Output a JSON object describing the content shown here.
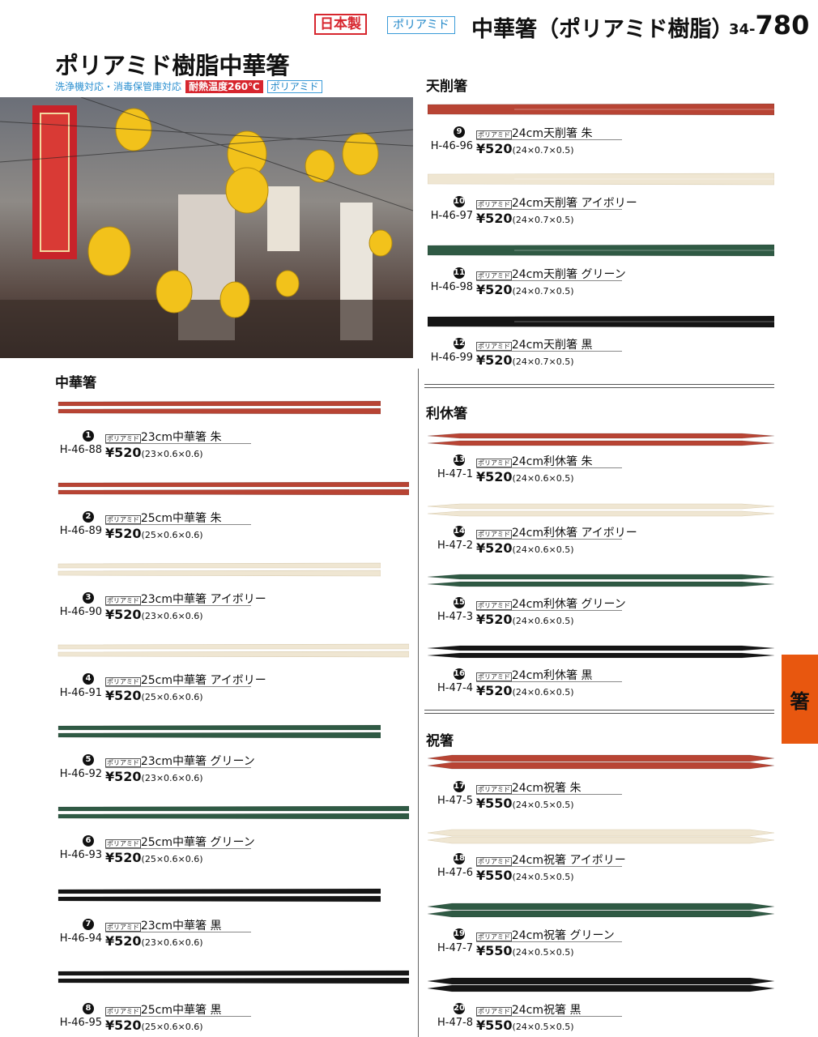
{
  "header": {
    "made_in_japan": "日本製",
    "material_badge": "ポリアミド",
    "title": "中華箸（ポリアミド樹脂）",
    "page_prefix": "34-",
    "page_number": "780"
  },
  "hero": {
    "title": "ポリアミド樹脂中華箸",
    "features": "洗浄機対応・消毒保管庫対応",
    "heat_badge": "耐熱温度260℃",
    "material_badge": "ポリアミド"
  },
  "side_tab": "箸",
  "colors": {
    "red": "#b84434",
    "ivory": "#efe6d2",
    "green": "#2f5a44",
    "black": "#151515",
    "accent": "#e8570f"
  },
  "sections": [
    {
      "title": "中華箸",
      "style": "chuka",
      "items": [
        {
          "num": "1",
          "code": "H-46-88",
          "tag": "ポリアミド",
          "name": "23cm中華箸 朱",
          "price": "¥520",
          "size": "(23×0.6×0.6)",
          "color": "#b84434",
          "length": 23
        },
        {
          "num": "2",
          "code": "H-46-89",
          "tag": "ポリアミド",
          "name": "25cm中華箸 朱",
          "price": "¥520",
          "size": "(25×0.6×0.6)",
          "color": "#b84434",
          "length": 25
        },
        {
          "num": "3",
          "code": "H-46-90",
          "tag": "ポリアミド",
          "name": "23cm中華箸 アイボリー",
          "price": "¥520",
          "size": "(23×0.6×0.6)",
          "color": "#efe6d2",
          "length": 23
        },
        {
          "num": "4",
          "code": "H-46-91",
          "tag": "ポリアミド",
          "name": "25cm中華箸 アイボリー",
          "price": "¥520",
          "size": "(25×0.6×0.6)",
          "color": "#efe6d2",
          "length": 25
        },
        {
          "num": "5",
          "code": "H-46-92",
          "tag": "ポリアミド",
          "name": "23cm中華箸 グリーン",
          "price": "¥520",
          "size": "(23×0.6×0.6)",
          "color": "#2f5a44",
          "length": 23
        },
        {
          "num": "6",
          "code": "H-46-93",
          "tag": "ポリアミド",
          "name": "25cm中華箸 グリーン",
          "price": "¥520",
          "size": "(25×0.6×0.6)",
          "color": "#2f5a44",
          "length": 25
        },
        {
          "num": "7",
          "code": "H-46-94",
          "tag": "ポリアミド",
          "name": "23cm中華箸 黒",
          "price": "¥520",
          "size": "(23×0.6×0.6)",
          "color": "#151515",
          "length": 23
        },
        {
          "num": "8",
          "code": "H-46-95",
          "tag": "ポリアミド",
          "name": "25cm中華箸 黒",
          "price": "¥520",
          "size": "(25×0.6×0.6)",
          "color": "#151515",
          "length": 25
        }
      ]
    },
    {
      "title": "天削箸",
      "style": "tensoge",
      "items": [
        {
          "num": "9",
          "code": "H-46-96",
          "tag": "ポリアミド",
          "name": "24cm天削箸 朱",
          "price": "¥520",
          "size": "(24×0.7×0.5)",
          "color": "#b84434",
          "length": 24
        },
        {
          "num": "10",
          "code": "H-46-97",
          "tag": "ポリアミド",
          "name": "24cm天削箸 アイボリー",
          "price": "¥520",
          "size": "(24×0.7×0.5)",
          "color": "#efe6d2",
          "length": 24
        },
        {
          "num": "11",
          "code": "H-46-98",
          "tag": "ポリアミド",
          "name": "24cm天削箸 グリーン",
          "price": "¥520",
          "size": "(24×0.7×0.5)",
          "color": "#2f5a44",
          "length": 24
        },
        {
          "num": "12",
          "code": "H-46-99",
          "tag": "ポリアミド",
          "name": "24cm天削箸 黒",
          "price": "¥520",
          "size": "(24×0.7×0.5)",
          "color": "#151515",
          "length": 24
        }
      ]
    },
    {
      "title": "利休箸",
      "style": "rikyu",
      "items": [
        {
          "num": "13",
          "code": "H-47-1",
          "tag": "ポリアミド",
          "name": "24cm利休箸 朱",
          "price": "¥520",
          "size": "(24×0.6×0.5)",
          "color": "#b84434",
          "length": 24
        },
        {
          "num": "14",
          "code": "H-47-2",
          "tag": "ポリアミド",
          "name": "24cm利休箸 アイボリー",
          "price": "¥520",
          "size": "(24×0.6×0.5)",
          "color": "#efe6d2",
          "length": 24
        },
        {
          "num": "15",
          "code": "H-47-3",
          "tag": "ポリアミド",
          "name": "24cm利休箸 グリーン",
          "price": "¥520",
          "size": "(24×0.6×0.5)",
          "color": "#2f5a44",
          "length": 24
        },
        {
          "num": "16",
          "code": "H-47-4",
          "tag": "ポリアミド",
          "name": "24cm利休箸 黒",
          "price": "¥520",
          "size": "(24×0.6×0.5)",
          "color": "#151515",
          "length": 24
        }
      ]
    },
    {
      "title": "祝箸",
      "style": "iwai",
      "items": [
        {
          "num": "17",
          "code": "H-47-5",
          "tag": "ポリアミド",
          "name": "24cm祝箸 朱",
          "price": "¥550",
          "size": "(24×0.5×0.5)",
          "color": "#b84434",
          "length": 24
        },
        {
          "num": "18",
          "code": "H-47-6",
          "tag": "ポリアミド",
          "name": "24cm祝箸 アイボリー",
          "price": "¥550",
          "size": "(24×0.5×0.5)",
          "color": "#efe6d2",
          "length": 24
        },
        {
          "num": "19",
          "code": "H-47-7",
          "tag": "ポリアミド",
          "name": "24cm祝箸 グリーン",
          "price": "¥550",
          "size": "(24×0.5×0.5)",
          "color": "#2f5a44",
          "length": 24
        },
        {
          "num": "20",
          "code": "H-47-8",
          "tag": "ポリアミド",
          "name": "24cm祝箸 黒",
          "price": "¥550",
          "size": "(24×0.5×0.5)",
          "color": "#151515",
          "length": 24
        }
      ]
    }
  ]
}
